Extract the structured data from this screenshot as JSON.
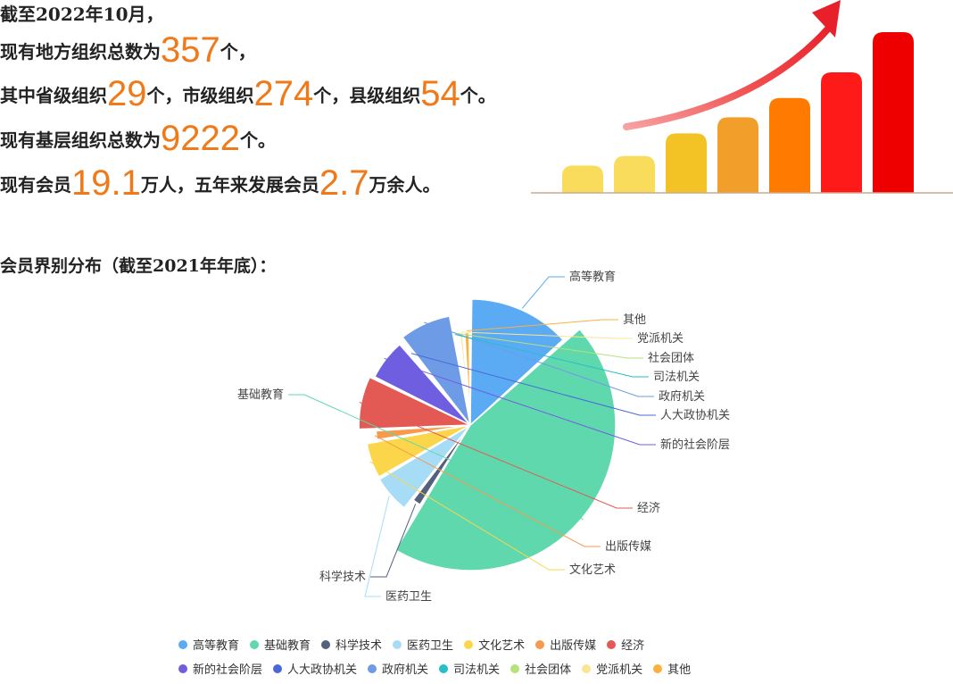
{
  "intro": {
    "line1": "截至2022年10月，",
    "line2_a": "现有地方组织总数为",
    "line2_num": "357",
    "line2_b": "个，",
    "line3_a": "其中省级组织",
    "line3_n1": "29",
    "line3_b": "个，市级组织",
    "line3_n2": "274",
    "line3_c": "个，县级组织",
    "line3_n3": "54",
    "line3_d": "个。",
    "line4_a": "现有基层组织总数为",
    "line4_num": "9222",
    "line4_b": "个。",
    "line5_a": "现有会员",
    "line5_n1": "19.1",
    "line5_b": "万人，五年来发展会员",
    "line5_n2": "2.7",
    "line5_c": "万余人。"
  },
  "pie_title": "会员界别分布（截至2021年年底）：",
  "colors": {
    "accent_number": "#f07a1a",
    "growth_bars": [
      "#f9dc5c",
      "#f9dc5c",
      "#f3c225",
      "#f29e2b",
      "#ff7a00",
      "#ff1a1a",
      "#ee0000"
    ],
    "growth_arrow": "#f03a3a"
  },
  "growth_graphic": {
    "relative_levels": [
      0.17,
      0.23,
      0.37,
      0.47,
      0.59,
      0.75,
      1.0
    ]
  },
  "chart_data": {
    "type": "pie",
    "title": "会员界别分布（截至2021年年底）",
    "series": [
      {
        "name": "高等教育",
        "value": 12.8,
        "color": "#5aabf3"
      },
      {
        "name": "基础教育",
        "value": 43.5,
        "color": "#5fd8ad"
      },
      {
        "name": "科学技术",
        "value": 1.7,
        "color": "#52617e"
      },
      {
        "name": "医药卫生",
        "value": 5.8,
        "color": "#a7dcf7"
      },
      {
        "name": "文化艺术",
        "value": 5.5,
        "color": "#fcd64a"
      },
      {
        "name": "出版传媒",
        "value": 1.8,
        "color": "#f79a4e"
      },
      {
        "name": "经济",
        "value": 7.7,
        "color": "#e35a55"
      },
      {
        "name": "新的社会阶层",
        "value": 6.2,
        "color": "#6f5fe0"
      },
      {
        "name": "人大政协机关",
        "value": 0.6,
        "color": "#4b68d9"
      },
      {
        "name": "政府机关",
        "value": 7.5,
        "color": "#6e9be6"
      },
      {
        "name": "司法机关",
        "value": 0.3,
        "color": "#27bec9"
      },
      {
        "name": "社会团体",
        "value": 0.5,
        "color": "#b5e27a"
      },
      {
        "name": "党派机关",
        "value": 0.8,
        "color": "#fbe495"
      },
      {
        "name": "其他",
        "value": 1.1,
        "color": "#fbb040"
      }
    ],
    "legend": {
      "placement": "bottom",
      "rows": [
        [
          "高等教育",
          "基础教育",
          "科学技术",
          "医药卫生",
          "文化艺术",
          "出版传媒",
          "经济"
        ],
        [
          "新的社会阶层",
          "人大政协机关",
          "政府机关",
          "司法机关",
          "社会团体",
          "党派机关",
          "其他"
        ]
      ]
    }
  }
}
